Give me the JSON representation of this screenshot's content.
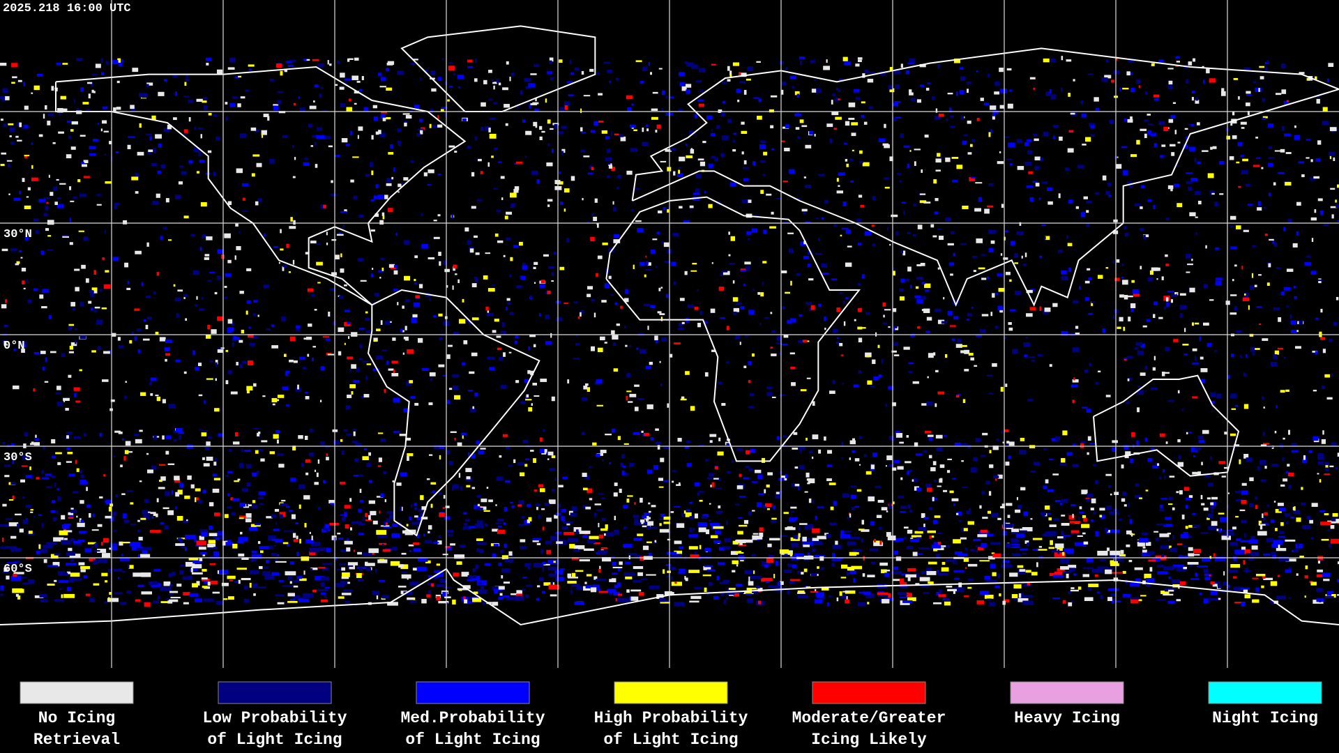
{
  "header": {
    "timestamp": "2025.218 16:00 UTC"
  },
  "map": {
    "lat_labels": [
      "30°N",
      "0°N",
      "30°S",
      "60°S"
    ]
  },
  "legend": {
    "items": [
      {
        "color": "#e8e8e8",
        "lines": [
          "No Icing",
          "Retrieval"
        ]
      },
      {
        "color": "#000080",
        "lines": [
          "Low Probability",
          "of Light Icing"
        ]
      },
      {
        "color": "#0000ff",
        "lines": [
          "Med.Probability",
          "of Light Icing"
        ]
      },
      {
        "color": "#ffff00",
        "lines": [
          "High Probability",
          "of Light Icing"
        ]
      },
      {
        "color": "#ff0000",
        "lines": [
          "Moderate/Greater",
          "Icing Likely"
        ]
      },
      {
        "color": "#e8a0e0",
        "lines": [
          "Heavy Icing"
        ]
      },
      {
        "color": "#00ffff",
        "lines": [
          "Night Icing"
        ]
      }
    ]
  }
}
